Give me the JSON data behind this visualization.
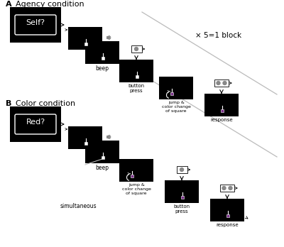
{
  "bg_color": "#ffffff",
  "black": "#000000",
  "white": "#ffffff",
  "gray": "#888888",
  "purple": "#7B2D8B",
  "light_gray": "#bbbbbb",
  "title_A": "Agency condition",
  "title_B": "Color condition",
  "label_A": "A",
  "label_B": "B",
  "block_text": "× 5=1 block",
  "simultaneous_text": "simultaneous",
  "self_text": "Self?",
  "red_text": "Red?",
  "beep_text": "beep",
  "button_press_text": "button\npress",
  "jump_text": "jump &\ncolor change\nof square",
  "response_text": "response"
}
